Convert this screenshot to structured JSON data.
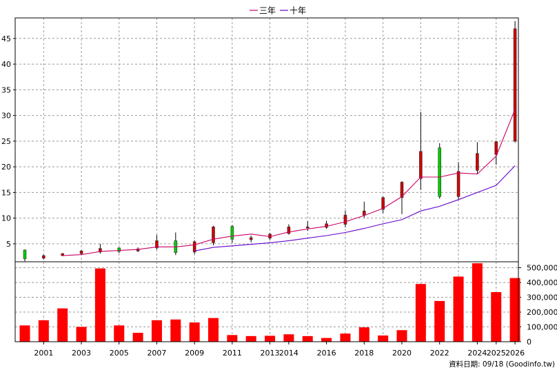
{
  "chart_data": [
    {
      "type": "candlestick",
      "legend": [
        "三年",
        "十年"
      ],
      "legend_position": "top-center",
      "series": [
        {
          "name": "三年",
          "color": "#cc0066"
        },
        {
          "name": "十年",
          "color": "#6600cc"
        }
      ],
      "y_ticks": [
        5,
        10,
        15,
        20,
        25,
        30,
        35,
        40,
        45
      ],
      "ylim": [
        1.5,
        49
      ],
      "grid": true,
      "candles": [
        {
          "year": 2000,
          "open": 2.1,
          "close": 3.8,
          "high": 3.9,
          "low": 1.6,
          "color": "green"
        },
        {
          "year": 2001,
          "open": 2.7,
          "close": 2.2,
          "high": 2.9,
          "low": 2.0,
          "color": "red"
        },
        {
          "year": 2002,
          "open": 3.1,
          "close": 2.7,
          "high": 3.2,
          "low": 2.6,
          "color": "red"
        },
        {
          "year": 2003,
          "open": 3.6,
          "close": 3.1,
          "high": 3.8,
          "low": 2.9,
          "color": "red"
        },
        {
          "year": 2004,
          "open": 4.1,
          "close": 3.4,
          "high": 5.0,
          "low": 3.1,
          "color": "red"
        },
        {
          "year": 2005,
          "open": 3.5,
          "close": 4.2,
          "high": 4.3,
          "low": 3.2,
          "color": "green"
        },
        {
          "year": 2006,
          "open": 4.0,
          "close": 3.6,
          "high": 4.3,
          "low": 3.4,
          "color": "red"
        },
        {
          "year": 2007,
          "open": 5.6,
          "close": 4.2,
          "high": 6.7,
          "low": 3.9,
          "color": "red"
        },
        {
          "year": 2008,
          "open": 3.3,
          "close": 5.6,
          "high": 7.2,
          "low": 2.8,
          "color": "green"
        },
        {
          "year": 2009,
          "open": 5.4,
          "close": 3.4,
          "high": 5.7,
          "low": 3.0,
          "color": "red"
        },
        {
          "year": 2010,
          "open": 8.3,
          "close": 5.2,
          "high": 8.5,
          "low": 4.7,
          "color": "red"
        },
        {
          "year": 2011,
          "open": 5.9,
          "close": 8.4,
          "high": 8.6,
          "low": 5.2,
          "color": "green"
        },
        {
          "year": 2012,
          "open": 6.2,
          "close": 5.8,
          "high": 6.6,
          "low": 5.3,
          "color": "red"
        },
        {
          "year": 2013,
          "open": 6.9,
          "close": 6.1,
          "high": 7.1,
          "low": 5.7,
          "color": "red"
        },
        {
          "year": 2014,
          "open": 8.3,
          "close": 7.0,
          "high": 8.8,
          "low": 6.8,
          "color": "red"
        },
        {
          "year": 2015,
          "open": 8.3,
          "close": 8.1,
          "high": 9.4,
          "low": 7.5,
          "color": "red"
        },
        {
          "year": 2016,
          "open": 8.9,
          "close": 8.2,
          "high": 9.5,
          "low": 7.9,
          "color": "red"
        },
        {
          "year": 2017,
          "open": 10.6,
          "close": 8.8,
          "high": 11.5,
          "low": 8.2,
          "color": "red"
        },
        {
          "year": 2018,
          "open": 11.4,
          "close": 10.6,
          "high": 13.2,
          "low": 10.1,
          "color": "red"
        },
        {
          "year": 2019,
          "open": 14.0,
          "close": 11.7,
          "high": 14.2,
          "low": 11.0,
          "color": "red"
        },
        {
          "year": 2020,
          "open": 17.0,
          "close": 14.0,
          "high": 17.2,
          "low": 10.8,
          "color": "red"
        },
        {
          "year": 2021,
          "open": 23.0,
          "close": 17.7,
          "high": 30.7,
          "low": 15.5,
          "color": "red"
        },
        {
          "year": 2022,
          "open": 14.2,
          "close": 23.7,
          "high": 24.6,
          "low": 13.8,
          "color": "green"
        },
        {
          "year": 2023,
          "open": 19.1,
          "close": 14.2,
          "high": 20.9,
          "low": 13.7,
          "color": "red"
        },
        {
          "year": 2024,
          "open": 22.6,
          "close": 19.3,
          "high": 24.8,
          "low": 18.6,
          "color": "red"
        },
        {
          "year": 2025,
          "open": 24.9,
          "close": 22.4,
          "high": 25.0,
          "low": 20.4,
          "color": "red"
        },
        {
          "year": 2026,
          "open": 46.9,
          "close": 25.0,
          "high": 48.4,
          "low": 24.7,
          "color": "red"
        }
      ],
      "ma_3y": [
        [
          2002,
          2.7
        ],
        [
          2003,
          2.9
        ],
        [
          2004,
          3.5
        ],
        [
          2005,
          3.7
        ],
        [
          2006,
          3.9
        ],
        [
          2007,
          4.4
        ],
        [
          2008,
          4.4
        ],
        [
          2009,
          4.8
        ],
        [
          2010,
          5.9
        ],
        [
          2011,
          6.5
        ],
        [
          2012,
          6.9
        ],
        [
          2013,
          6.4
        ],
        [
          2014,
          7.3
        ],
        [
          2015,
          7.9
        ],
        [
          2016,
          8.4
        ],
        [
          2017,
          9.3
        ],
        [
          2018,
          10.5
        ],
        [
          2019,
          11.9
        ],
        [
          2020,
          14.2
        ],
        [
          2021,
          18.0
        ],
        [
          2022,
          18.0
        ],
        [
          2023,
          18.8
        ],
        [
          2024,
          18.6
        ],
        [
          2025,
          22.1
        ],
        [
          2026,
          31.2
        ]
      ],
      "ma_10y": [
        [
          2009,
          3.6
        ],
        [
          2010,
          4.3
        ],
        [
          2011,
          4.6
        ],
        [
          2012,
          4.9
        ],
        [
          2013,
          5.2
        ],
        [
          2014,
          5.6
        ],
        [
          2015,
          6.1
        ],
        [
          2016,
          6.6
        ],
        [
          2017,
          7.2
        ],
        [
          2018,
          8.0
        ],
        [
          2019,
          8.9
        ],
        [
          2020,
          9.7
        ],
        [
          2021,
          11.4
        ],
        [
          2022,
          12.3
        ],
        [
          2023,
          13.6
        ],
        [
          2024,
          15.0
        ],
        [
          2025,
          16.4
        ],
        [
          2026,
          20.2
        ]
      ]
    },
    {
      "type": "bar",
      "color": "#ff0000",
      "y_ticks": [
        0,
        100000,
        200000,
        300000,
        400000,
        500000
      ],
      "y_tick_labels": [
        "0",
        "100,000",
        "200,000",
        "300,000",
        "400,000",
        "500,000"
      ],
      "ylim": [
        0,
        540000
      ],
      "grid": true,
      "bars": [
        {
          "year": 2000,
          "value": 110000
        },
        {
          "year": 2001,
          "value": 145000
        },
        {
          "year": 2002,
          "value": 225000
        },
        {
          "year": 2003,
          "value": 100000
        },
        {
          "year": 2004,
          "value": 495000
        },
        {
          "year": 2005,
          "value": 110000
        },
        {
          "year": 2006,
          "value": 60000
        },
        {
          "year": 2007,
          "value": 145000
        },
        {
          "year": 2008,
          "value": 150000
        },
        {
          "year": 2009,
          "value": 130000
        },
        {
          "year": 2010,
          "value": 160000
        },
        {
          "year": 2011,
          "value": 45000
        },
        {
          "year": 2012,
          "value": 38000
        },
        {
          "year": 2013,
          "value": 40000
        },
        {
          "year": 2014,
          "value": 50000
        },
        {
          "year": 2015,
          "value": 38000
        },
        {
          "year": 2016,
          "value": 25000
        },
        {
          "year": 2017,
          "value": 55000
        },
        {
          "year": 2018,
          "value": 97000
        },
        {
          "year": 2019,
          "value": 42000
        },
        {
          "year": 2020,
          "value": 78000
        },
        {
          "year": 2021,
          "value": 390000
        },
        {
          "year": 2022,
          "value": 275000
        },
        {
          "year": 2023,
          "value": 440000
        },
        {
          "year": 2024,
          "value": 530000
        },
        {
          "year": 2025,
          "value": 335000
        },
        {
          "year": 2026,
          "value": 430000
        }
      ],
      "x_tick_labels": [
        "2001",
        "2003",
        "2005",
        "2007",
        "2009",
        "2011",
        "2013",
        "2014",
        "2016",
        "2018",
        "2020",
        "2022",
        "2024",
        "2025",
        "2026"
      ]
    }
  ],
  "footer": "資料日期: 09/18  (Goodinfo.tw)"
}
